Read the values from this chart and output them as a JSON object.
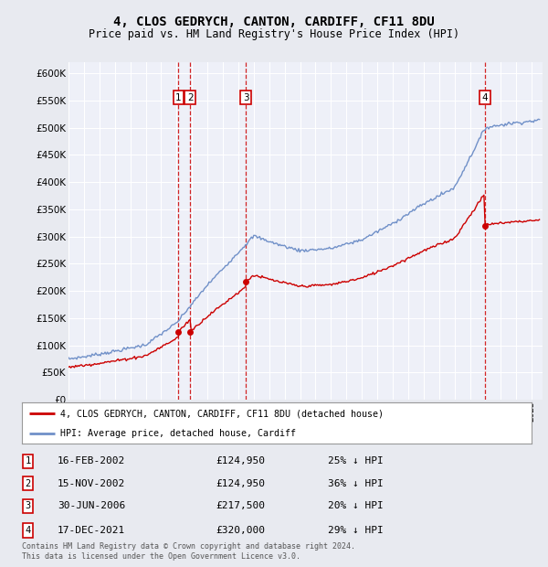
{
  "title": "4, CLOS GEDRYCH, CANTON, CARDIFF, CF11 8DU",
  "subtitle": "Price paid vs. HM Land Registry's House Price Index (HPI)",
  "legend_property": "4, CLOS GEDRYCH, CANTON, CARDIFF, CF11 8DU (detached house)",
  "legend_hpi": "HPI: Average price, detached house, Cardiff",
  "footnote1": "Contains HM Land Registry data © Crown copyright and database right 2024.",
  "footnote2": "This data is licensed under the Open Government Licence v3.0.",
  "table": [
    {
      "num": 1,
      "date": "16-FEB-2002",
      "price": "£124,950",
      "pct": "25% ↓ HPI"
    },
    {
      "num": 2,
      "date": "15-NOV-2002",
      "price": "£124,950",
      "pct": "36% ↓ HPI"
    },
    {
      "num": 3,
      "date": "30-JUN-2006",
      "price": "£217,500",
      "pct": "20% ↓ HPI"
    },
    {
      "num": 4,
      "date": "17-DEC-2021",
      "price": "£320,000",
      "pct": "29% ↓ HPI"
    }
  ],
  "sale_dates_decimal": [
    2002.123,
    2002.877,
    2006.497,
    2021.958
  ],
  "sale_prices": [
    124950,
    124950,
    217500,
    320000
  ],
  "background_color": "#e8eaf0",
  "plot_bg_color": "#eef0f8",
  "grid_color": "#ffffff",
  "red_line_color": "#cc0000",
  "blue_line_color": "#7090c8",
  "vline_color": "#cc0000",
  "ylim_max": 620000,
  "ytick_step": 50000
}
